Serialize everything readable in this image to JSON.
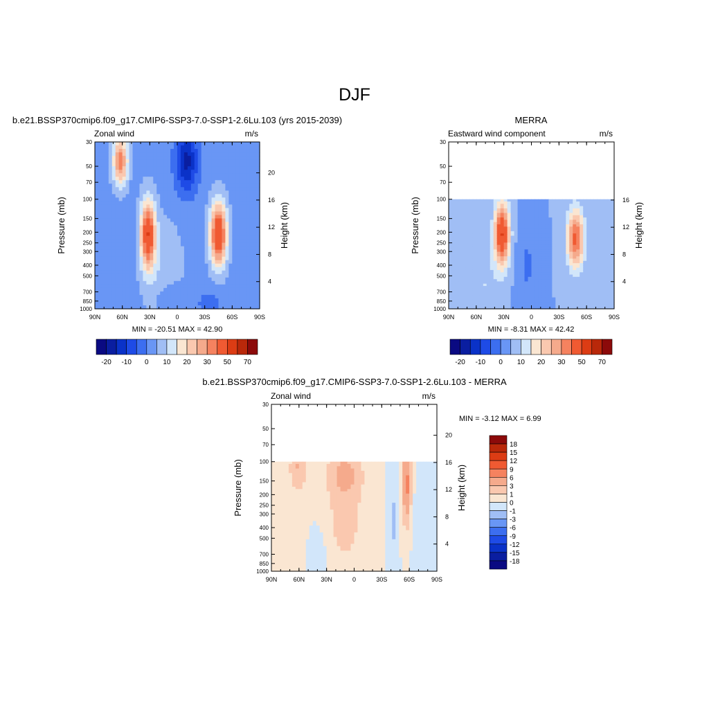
{
  "figure": {
    "title": "DJF"
  },
  "chart_data": [
    {
      "type": "heatmap",
      "title": "b.e21.BSSP370cmip6.f09_g17.CMIP6-SSP3-7.0-SSP1-2.6Lu.103 (yrs 2015-2039)",
      "left_string": "Zonal wind",
      "right_string": "m/s",
      "xlabel": "",
      "ylabel": "Pressure (mb)",
      "ylabel_right": "Height (km)",
      "x_ticks": [
        "90N",
        "60N",
        "30N",
        "0",
        "30S",
        "60S",
        "90S"
      ],
      "y_ticks": [
        30,
        50,
        70,
        100,
        150,
        200,
        250,
        300,
        400,
        500,
        700,
        850,
        1000
      ],
      "height_ticks": [
        20,
        16,
        12,
        8,
        4
      ],
      "pmin": 30,
      "stats": "MIN = -20.51  MAX =  42.90",
      "min": -20.51,
      "max": 42.9,
      "field": [
        {
          "lat": 62,
          "p": 45,
          "v": 30,
          "sx": 8,
          "sp": 0.5
        },
        {
          "lat": 32,
          "p": 210,
          "v": 40,
          "sx": 8,
          "sp": 0.7
        },
        {
          "lat": 15,
          "p": 450,
          "v": 6,
          "sx": 22,
          "sp": 1.1
        },
        {
          "lat": -45,
          "p": 210,
          "v": 42,
          "sx": 9,
          "sp": 0.65
        },
        {
          "lat": -10,
          "p": 45,
          "v": -20,
          "sx": 12,
          "sp": 0.65
        },
        {
          "lat": 8,
          "p": 800,
          "v": -6,
          "sx": 14,
          "sp": 0.35
        },
        {
          "lat": -35,
          "p": 900,
          "v": -5,
          "sx": 16,
          "sp": 0.3
        }
      ],
      "base": -2,
      "blank_below": null,
      "colorbar": {
        "type": "horizontal",
        "labels": [
          "-20",
          "-10",
          "0",
          "10",
          "20",
          "30",
          "50",
          "70"
        ]
      }
    },
    {
      "type": "heatmap",
      "title": "MERRA",
      "left_string": "Eastward wind component",
      "right_string": "m/s",
      "xlabel": "",
      "ylabel": "Pressure (mb)",
      "ylabel_right": "Height (km)",
      "x_ticks": [
        "90N",
        "60N",
        "30N",
        "0",
        "30S",
        "60S",
        "90S"
      ],
      "y_ticks": [
        30,
        50,
        70,
        100,
        150,
        200,
        250,
        300,
        400,
        500,
        700,
        850,
        1000
      ],
      "height_ticks": [
        16,
        12,
        8,
        4
      ],
      "pmin": 100,
      "stats": "MIN =  -8.31  MAX =  42.42",
      "min": -8.31,
      "max": 42.42,
      "field": [
        {
          "lat": 32,
          "p": 210,
          "v": 40,
          "sx": 8,
          "sp": 0.65
        },
        {
          "lat": -48,
          "p": 230,
          "v": 32,
          "sx": 9,
          "sp": 0.6
        },
        {
          "lat": 5,
          "p": 400,
          "v": -6,
          "sx": 10,
          "sp": 0.8
        },
        {
          "lat": 50,
          "p": 600,
          "v": 5,
          "sx": 14,
          "sp": 0.8
        }
      ],
      "base": 0,
      "blank_below": null,
      "colorbar": {
        "type": "horizontal",
        "labels": [
          "-20",
          "-10",
          "0",
          "10",
          "20",
          "30",
          "50",
          "70"
        ]
      }
    },
    {
      "type": "heatmap",
      "title": "b.e21.BSSP370cmip6.f09_g17.CMIP6-SSP3-7.0-SSP1-2.6Lu.103 - MERRA",
      "left_string": "Zonal wind",
      "right_string": "m/s",
      "xlabel": "",
      "ylabel": "Pressure (mb)",
      "ylabel_right": "Height (km)",
      "x_ticks": [
        "90N",
        "60N",
        "30N",
        "0",
        "30S",
        "60S",
        "90S"
      ],
      "y_ticks": [
        30,
        50,
        70,
        100,
        150,
        200,
        250,
        300,
        400,
        500,
        700,
        850,
        1000
      ],
      "height_ticks": [
        20,
        16,
        12,
        8,
        4
      ],
      "pmin": 100,
      "stats": "MIN =  -3.12  MAX =   6.99",
      "min": -3.12,
      "max": 6.99,
      "field": [
        {
          "lat": 75,
          "p": 500,
          "v": 0.8,
          "sx": 20,
          "sp": 1.5
        },
        {
          "lat": 60,
          "p": 110,
          "v": 3,
          "sx": 8,
          "sp": 0.4
        },
        {
          "lat": 10,
          "p": 130,
          "v": 3.5,
          "sx": 16,
          "sp": 0.5
        },
        {
          "lat": 10,
          "p": 350,
          "v": 1.5,
          "sx": 20,
          "sp": 1.0
        },
        {
          "lat": -57,
          "p": 160,
          "v": 7,
          "sx": 4,
          "sp": 0.7
        },
        {
          "lat": -42,
          "p": 350,
          "v": -1.5,
          "sx": 4,
          "sp": 0.7
        },
        {
          "lat": 40,
          "p": 700,
          "v": -0.6,
          "sx": 12,
          "sp": 0.6
        },
        {
          "lat": -80,
          "p": 500,
          "v": -0.7,
          "sx": 10,
          "sp": 1.5
        }
      ],
      "base": 0,
      "blank_below": null,
      "colorbar": {
        "type": "vertical",
        "labels": [
          "18",
          "15",
          "12",
          "9",
          "6",
          "3",
          "1",
          "0",
          "-1",
          "-3",
          "-6",
          "-9",
          "-12",
          "-15",
          "-18"
        ]
      }
    }
  ],
  "palette": [
    "#0a0a82",
    "#0a1ea0",
    "#0a32c8",
    "#1e4be6",
    "#3c6ef0",
    "#6996f5",
    "#a0bef5",
    "#d2e6fa",
    "#fae6d2",
    "#fac8af",
    "#f5aa8c",
    "#f5825f",
    "#f05a32",
    "#dc3c14",
    "#b9280a",
    "#8c0a0a"
  ],
  "thresholds_abs": [
    -25,
    -20,
    -15,
    -10,
    -5,
    0,
    5,
    10,
    15,
    20,
    25,
    30,
    40,
    50,
    60,
    70
  ],
  "thresholds_diff": [
    -18,
    -15,
    -12,
    -9,
    -6,
    -3,
    -1,
    0,
    1,
    3,
    6,
    9,
    12,
    15,
    18
  ]
}
